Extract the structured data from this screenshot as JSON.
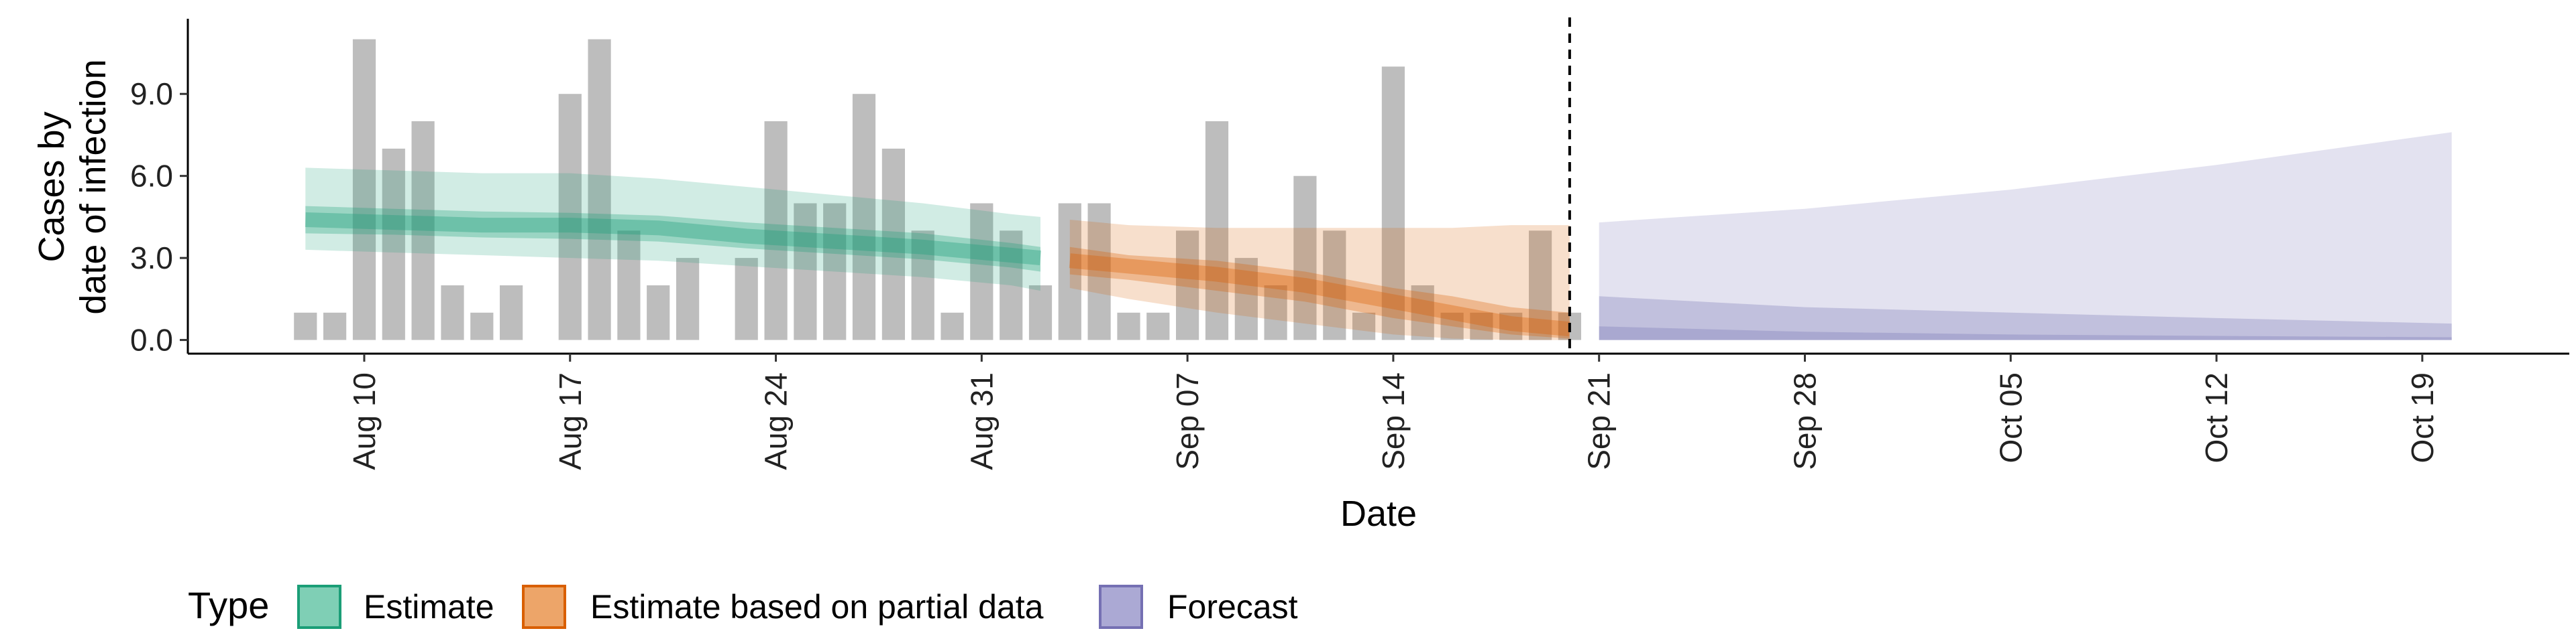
{
  "chart_data": {
    "type": "bar",
    "title": "",
    "xlabel": "Date",
    "ylabel": [
      "Cases by",
      "date of infection"
    ],
    "x_tick_labels": [
      "Aug 10",
      "Aug 17",
      "Aug 24",
      "Aug 31",
      "Sep 07",
      "Sep 14",
      "Sep 21",
      "Sep 28",
      "Oct 05",
      "Oct 12",
      "Oct 19"
    ],
    "x_tick_dates": [
      "2020-08-10",
      "2020-08-17",
      "2020-08-24",
      "2020-08-31",
      "2020-09-07",
      "2020-09-14",
      "2020-09-21",
      "2020-09-28",
      "2020-10-05",
      "2020-10-12",
      "2020-10-19"
    ],
    "y_ticks": [
      0,
      3,
      6,
      9
    ],
    "y_tick_labels": [
      "0.0",
      "3.0",
      "6.0",
      "9.0"
    ],
    "ylim": [
      -0.5,
      11.7
    ],
    "xlim": [
      "2020-08-04",
      "2020-10-24"
    ],
    "grid": false,
    "legend_position": "bottom",
    "legend": {
      "title": "Type",
      "items": [
        {
          "label": "Estimate",
          "fill": "#7fcfb5",
          "stroke": "#1b9e77"
        },
        {
          "label": "Estimate based on partial data",
          "fill": "#eda569",
          "stroke": "#d95f02"
        },
        {
          "label": "Forecast",
          "fill": "#aba9d4",
          "stroke": "#7570b3"
        }
      ]
    },
    "colors": {
      "bars": "#bdbdbd",
      "estimate": "#1b9e77",
      "partial": "#d95f02",
      "forecast": "#7570b3",
      "vline": "#000000"
    },
    "vline_date": "2020-09-20",
    "bars": {
      "dates": [
        "2020-08-08",
        "2020-08-09",
        "2020-08-10",
        "2020-08-11",
        "2020-08-12",
        "2020-08-13",
        "2020-08-14",
        "2020-08-15",
        "2020-08-16",
        "2020-08-17",
        "2020-08-18",
        "2020-08-19",
        "2020-08-20",
        "2020-08-21",
        "2020-08-22",
        "2020-08-23",
        "2020-08-24",
        "2020-08-25",
        "2020-08-26",
        "2020-08-27",
        "2020-08-28",
        "2020-08-29",
        "2020-08-30",
        "2020-08-31",
        "2020-09-01",
        "2020-09-02",
        "2020-09-03",
        "2020-09-04",
        "2020-09-05",
        "2020-09-06",
        "2020-09-07",
        "2020-09-08",
        "2020-09-09",
        "2020-09-10",
        "2020-09-11",
        "2020-09-12",
        "2020-09-13",
        "2020-09-14",
        "2020-09-15",
        "2020-09-16",
        "2020-09-17",
        "2020-09-18",
        "2020-09-19",
        "2020-09-20"
      ],
      "values": [
        1,
        1,
        11,
        7,
        8,
        2,
        1,
        2,
        0,
        9,
        11,
        4,
        2,
        3,
        0,
        3,
        8,
        5,
        5,
        9,
        7,
        4,
        1,
        5,
        4,
        2,
        5,
        5,
        1,
        1,
        4,
        8,
        3,
        2,
        6,
        4,
        1,
        10,
        2,
        1,
        1,
        1,
        4,
        1
      ]
    },
    "series": [
      {
        "name": "Estimate",
        "x": [
          "2020-08-08",
          "2020-08-11",
          "2020-08-14",
          "2020-08-17",
          "2020-08-20",
          "2020-08-23",
          "2020-08-26",
          "2020-08-29",
          "2020-09-01",
          "2020-09-02"
        ],
        "median": [
          4.4,
          4.3,
          4.2,
          4.2,
          4.1,
          3.8,
          3.6,
          3.4,
          3.1,
          3.0
        ],
        "lower_50": [
          3.9,
          3.85,
          3.75,
          3.7,
          3.6,
          3.35,
          3.15,
          2.95,
          2.65,
          2.5
        ],
        "upper_50": [
          4.9,
          4.8,
          4.7,
          4.65,
          4.55,
          4.3,
          4.1,
          3.9,
          3.55,
          3.4
        ],
        "lower_90": [
          3.3,
          3.2,
          3.1,
          3.0,
          2.9,
          2.7,
          2.5,
          2.3,
          2.0,
          1.8
        ],
        "upper_90": [
          6.3,
          6.2,
          6.1,
          6.1,
          5.9,
          5.6,
          5.3,
          5.0,
          4.6,
          4.5
        ]
      },
      {
        "name": "Estimate based on partial data",
        "x": [
          "2020-09-03",
          "2020-09-05",
          "2020-09-08",
          "2020-09-11",
          "2020-09-14",
          "2020-09-16",
          "2020-09-18",
          "2020-09-20"
        ],
        "median": [
          2.9,
          2.7,
          2.4,
          2.0,
          1.4,
          1.0,
          0.6,
          0.4
        ],
        "lower_50": [
          2.4,
          2.2,
          1.8,
          1.4,
          0.8,
          0.5,
          0.2,
          0.05
        ],
        "upper_50": [
          3.4,
          3.1,
          2.9,
          2.5,
          1.9,
          1.6,
          1.2,
          1.0
        ],
        "lower_90": [
          1.9,
          1.5,
          1.0,
          0.6,
          0.2,
          0.05,
          0.0,
          0.0
        ],
        "upper_90": [
          4.4,
          4.2,
          4.1,
          4.1,
          4.1,
          4.1,
          4.2,
          4.2
        ]
      },
      {
        "name": "Forecast",
        "x": [
          "2020-09-21",
          "2020-09-28",
          "2020-10-05",
          "2020-10-12",
          "2020-10-20"
        ],
        "lower_90": [
          0.0,
          0.0,
          0.0,
          0.0,
          0.0
        ],
        "upper_90": [
          4.3,
          4.8,
          5.5,
          6.4,
          7.6
        ],
        "lower_50": [
          0.0,
          0.0,
          0.0,
          0.0,
          0.0
        ],
        "upper_50": [
          1.6,
          1.2,
          1.0,
          0.8,
          0.6
        ],
        "lower_20": [
          0.0,
          0.0,
          0.0,
          0.0,
          0.0
        ],
        "upper_20": [
          0.5,
          0.3,
          0.2,
          0.15,
          0.1
        ]
      }
    ]
  }
}
